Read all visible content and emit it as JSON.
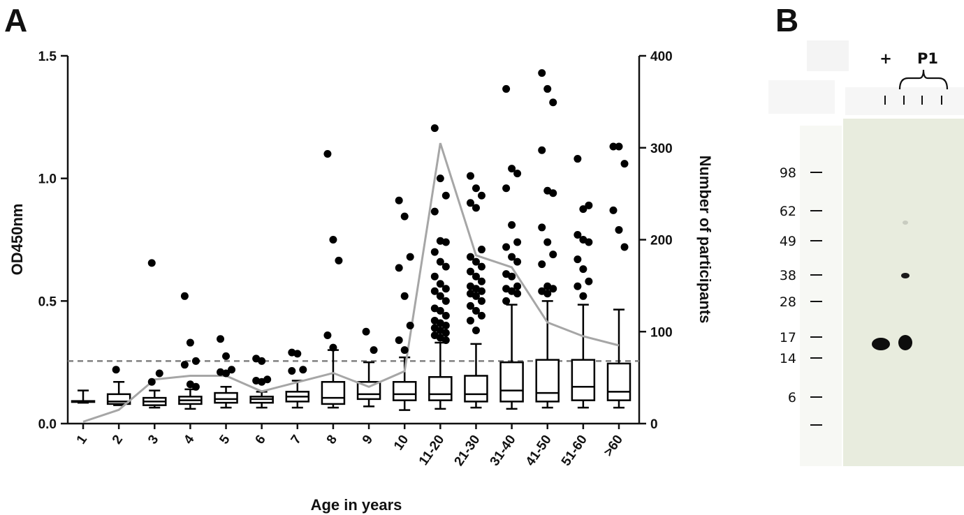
{
  "figure": {
    "panel_a_label": "A",
    "panel_b_label": "B"
  },
  "chart_data": {
    "type": "box",
    "xlabel": "Age in years",
    "ylabel_left": "OD450nm",
    "ylabel_right": "Number of participants",
    "categories": [
      "1",
      "2",
      "3",
      "4",
      "5",
      "6",
      "7",
      "8",
      "9",
      "10",
      "11-20",
      "21-30",
      "31-40",
      "41-50",
      "51-60",
      ">60"
    ],
    "y_left": {
      "range": [
        0,
        1.5
      ],
      "ticks": [
        "0.0",
        "0.5",
        "1.0",
        "1.5"
      ],
      "tick_values": [
        0,
        0.5,
        1.0,
        1.5
      ]
    },
    "y_right": {
      "range": [
        0,
        400
      ],
      "ticks": [
        "0",
        "100",
        "200",
        "300",
        "400"
      ],
      "tick_values": [
        0,
        100,
        200,
        300,
        400
      ]
    },
    "cutoff_line": 0.255,
    "colors": {
      "box": "#000000",
      "outlier": "#000000",
      "participants_line": "#a6a6a6",
      "cutoff": "#808080"
    },
    "boxes": [
      {
        "cat": "1",
        "min": 0.085,
        "q1": 0.088,
        "median": 0.09,
        "q3": 0.092,
        "max": 0.135
      },
      {
        "cat": "2",
        "min": 0.075,
        "q1": 0.08,
        "median": 0.09,
        "q3": 0.12,
        "max": 0.17
      },
      {
        "cat": "3",
        "min": 0.065,
        "q1": 0.075,
        "median": 0.09,
        "q3": 0.105,
        "max": 0.135
      },
      {
        "cat": "4",
        "min": 0.06,
        "q1": 0.08,
        "median": 0.095,
        "q3": 0.11,
        "max": 0.14
      },
      {
        "cat": "5",
        "min": 0.065,
        "q1": 0.085,
        "median": 0.1,
        "q3": 0.125,
        "max": 0.15
      },
      {
        "cat": "6",
        "min": 0.065,
        "q1": 0.085,
        "median": 0.1,
        "q3": 0.11,
        "max": 0.13
      },
      {
        "cat": "7",
        "min": 0.065,
        "q1": 0.09,
        "median": 0.11,
        "q3": 0.13,
        "max": 0.175
      },
      {
        "cat": "8",
        "min": 0.065,
        "q1": 0.08,
        "median": 0.105,
        "q3": 0.17,
        "max": 0.3
      },
      {
        "cat": "9",
        "min": 0.07,
        "q1": 0.1,
        "median": 0.12,
        "q3": 0.17,
        "max": 0.25
      },
      {
        "cat": "10",
        "min": 0.055,
        "q1": 0.095,
        "median": 0.12,
        "q3": 0.17,
        "max": 0.27
      },
      {
        "cat": "11-20",
        "min": 0.06,
        "q1": 0.095,
        "median": 0.12,
        "q3": 0.19,
        "max": 0.33
      },
      {
        "cat": "21-30",
        "min": 0.065,
        "q1": 0.09,
        "median": 0.12,
        "q3": 0.195,
        "max": 0.325
      },
      {
        "cat": "31-40",
        "min": 0.06,
        "q1": 0.09,
        "median": 0.135,
        "q3": 0.25,
        "max": 0.485
      },
      {
        "cat": "41-50",
        "min": 0.065,
        "q1": 0.09,
        "median": 0.125,
        "q3": 0.26,
        "max": 0.5
      },
      {
        "cat": "51-60",
        "min": 0.065,
        "q1": 0.095,
        "median": 0.15,
        "q3": 0.26,
        "max": 0.485
      },
      {
        "cat": ">60",
        "min": 0.065,
        "q1": 0.095,
        "median": 0.13,
        "q3": 0.245,
        "max": 0.465
      }
    ],
    "outliers": [
      {
        "cat": "2",
        "values": [
          0.22
        ]
      },
      {
        "cat": "3",
        "values": [
          0.655,
          0.205,
          0.17
        ]
      },
      {
        "cat": "4",
        "values": [
          0.52,
          0.33,
          0.255,
          0.24,
          0.16,
          0.15
        ]
      },
      {
        "cat": "5",
        "values": [
          0.345,
          0.275,
          0.22,
          0.21,
          0.205
        ]
      },
      {
        "cat": "6",
        "values": [
          0.265,
          0.255,
          0.18,
          0.175,
          0.17
        ]
      },
      {
        "cat": "7",
        "values": [
          0.29,
          0.285,
          0.22,
          0.215
        ]
      },
      {
        "cat": "8",
        "values": [
          1.1,
          0.75,
          0.665,
          0.36,
          0.31
        ]
      },
      {
        "cat": "9",
        "values": [
          0.375,
          0.3
        ]
      },
      {
        "cat": "10",
        "values": [
          0.91,
          0.845,
          0.68,
          0.635,
          0.52,
          0.4,
          0.34,
          0.3
        ]
      },
      {
        "cat": "11-20",
        "values": [
          1.205,
          1.0,
          0.93,
          0.865,
          0.745,
          0.74,
          0.7,
          0.66,
          0.64,
          0.6,
          0.57,
          0.55,
          0.54,
          0.52,
          0.5,
          0.47,
          0.46,
          0.44,
          0.42,
          0.41,
          0.4,
          0.39,
          0.38,
          0.37,
          0.36,
          0.35,
          0.34
        ]
      },
      {
        "cat": "21-30",
        "values": [
          1.01,
          0.96,
          0.93,
          0.9,
          0.88,
          0.71,
          0.68,
          0.66,
          0.64,
          0.62,
          0.6,
          0.58,
          0.56,
          0.55,
          0.54,
          0.53,
          0.52,
          0.5,
          0.48,
          0.46,
          0.44,
          0.42,
          0.38
        ]
      },
      {
        "cat": "31-40",
        "values": [
          1.365,
          1.04,
          1.02,
          0.96,
          0.81,
          0.74,
          0.72,
          0.68,
          0.66,
          0.61,
          0.6,
          0.56,
          0.55,
          0.54,
          0.53,
          0.5
        ]
      },
      {
        "cat": "41-50",
        "values": [
          1.43,
          1.365,
          1.31,
          1.115,
          0.95,
          0.94,
          0.8,
          0.74,
          0.69,
          0.65,
          0.56,
          0.55,
          0.54,
          0.53
        ]
      },
      {
        "cat": "51-60",
        "values": [
          1.08,
          0.875,
          0.89,
          0.77,
          0.75,
          0.74,
          0.67,
          0.63,
          0.58,
          0.56,
          0.52
        ]
      },
      {
        "cat": ">60",
        "values": [
          1.13,
          1.13,
          1.06,
          0.87,
          0.79,
          0.72
        ]
      }
    ],
    "participants": {
      "name": "",
      "values": [
        2,
        15,
        48,
        52,
        52,
        35,
        45,
        55,
        40,
        57,
        305,
        183,
        170,
        110,
        95,
        85
      ]
    }
  },
  "blot": {
    "lane_labels": {
      "positive": "+",
      "sample": "P1"
    },
    "markers": [
      "98",
      "62",
      "49",
      "38",
      "28",
      "17",
      "14",
      "6"
    ],
    "colors": {
      "membrane": "#e8ecde",
      "band": "#0d0d0d"
    }
  }
}
